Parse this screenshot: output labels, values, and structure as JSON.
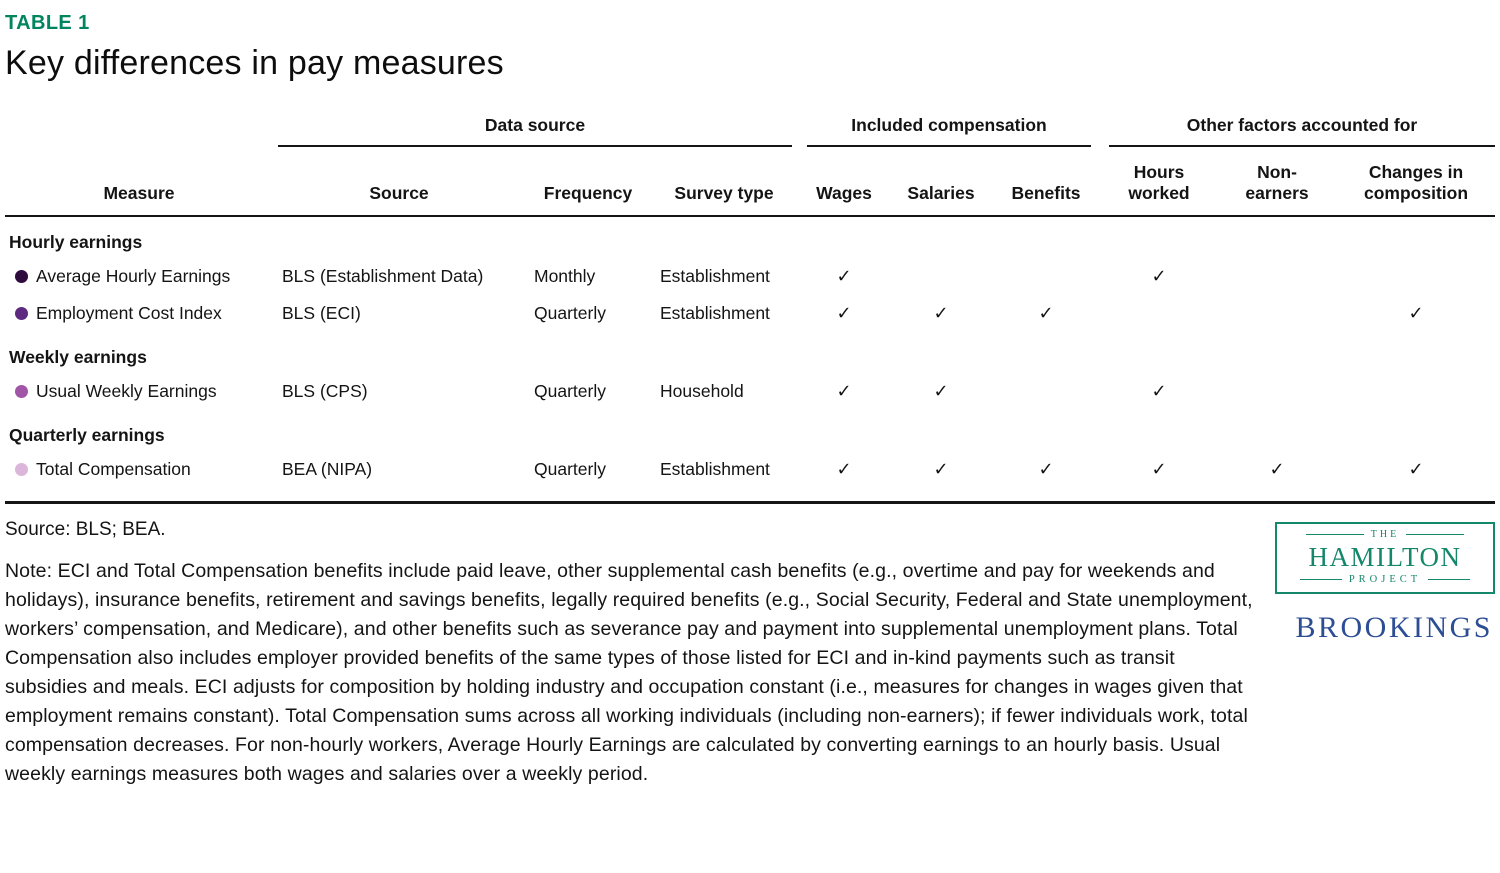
{
  "page": {
    "table_label": "TABLE 1",
    "title": "Key differences in pay measures"
  },
  "table": {
    "groups": {
      "data_source": "Data source",
      "included_compensation": "Included compensation",
      "other_factors": "Other factors accounted for"
    },
    "headers": {
      "measure": "Measure",
      "source": "Source",
      "frequency": "Frequency",
      "survey_type": "Survey type",
      "wages": "Wages",
      "salaries": "Salaries",
      "benefits": "Benefits",
      "hours_worked": "Hours\nworked",
      "non_earners": "Non-\nearners",
      "changes_in_composition": "Changes in\ncomposition"
    },
    "sections": [
      {
        "label": "Hourly earnings",
        "rows": [
          {
            "measure": "Average Hourly Earnings",
            "bullet_color": "#2d0b3d",
            "source": "BLS (Establishment Data)",
            "frequency": "Monthly",
            "survey_type": "Establishment",
            "checks": [
              "✓",
              "",
              "",
              "✓",
              "",
              ""
            ]
          },
          {
            "measure": "Employment Cost Index",
            "bullet_color": "#5e2a80",
            "source": "BLS (ECI)",
            "frequency": "Quarterly",
            "survey_type": "Establishment",
            "checks": [
              "✓",
              "✓",
              "✓",
              "",
              "",
              "✓"
            ]
          }
        ]
      },
      {
        "label": "Weekly earnings",
        "rows": [
          {
            "measure": "Usual Weekly Earnings",
            "bullet_color": "#a155a6",
            "source": "BLS (CPS)",
            "frequency": "Quarterly",
            "survey_type": "Household",
            "checks": [
              "✓",
              "✓",
              "",
              "✓",
              "",
              ""
            ]
          }
        ]
      },
      {
        "label": "Quarterly earnings",
        "rows": [
          {
            "measure": "Total Compensation",
            "bullet_color": "#dcb6da",
            "source": "BEA (NIPA)",
            "frequency": "Quarterly",
            "survey_type": "Establishment",
            "checks": [
              "✓",
              "✓",
              "✓",
              "✓",
              "✓",
              "✓"
            ]
          }
        ]
      }
    ]
  },
  "chart_data": {
    "type": "table",
    "title": "Key differences in pay measures",
    "column_groups": [
      "Data source",
      "Included compensation",
      "Other factors accounted for"
    ],
    "columns": [
      "Measure",
      "Source",
      "Frequency",
      "Survey type",
      "Wages",
      "Salaries",
      "Benefits",
      "Hours worked",
      "Non-earners",
      "Changes in composition"
    ],
    "rows": [
      {
        "section": "Hourly earnings",
        "measure": "Average Hourly Earnings",
        "source": "BLS (Establishment Data)",
        "frequency": "Monthly",
        "survey_type": "Establishment",
        "wages": true,
        "salaries": false,
        "benefits": false,
        "hours_worked": true,
        "non_earners": false,
        "changes_in_composition": false
      },
      {
        "section": "Hourly earnings",
        "measure": "Employment Cost Index",
        "source": "BLS (ECI)",
        "frequency": "Quarterly",
        "survey_type": "Establishment",
        "wages": true,
        "salaries": true,
        "benefits": true,
        "hours_worked": false,
        "non_earners": false,
        "changes_in_composition": true
      },
      {
        "section": "Weekly earnings",
        "measure": "Usual Weekly Earnings",
        "source": "BLS (CPS)",
        "frequency": "Quarterly",
        "survey_type": "Household",
        "wages": true,
        "salaries": true,
        "benefits": false,
        "hours_worked": true,
        "non_earners": false,
        "changes_in_composition": false
      },
      {
        "section": "Quarterly earnings",
        "measure": "Total Compensation",
        "source": "BEA (NIPA)",
        "frequency": "Quarterly",
        "survey_type": "Establishment",
        "wages": true,
        "salaries": true,
        "benefits": true,
        "hours_worked": true,
        "non_earners": true,
        "changes_in_composition": true
      }
    ]
  },
  "footer": {
    "source_line": "Source: BLS; BEA.",
    "note": "Note: ECI and Total Compensation benefits include paid leave, other supplemental cash benefits (e.g., overtime and pay for weekends and holidays), insurance benefits, retirement and savings benefits, legally required benefits (e.g., Social Security, Federal and State unemployment, workers’ compensation, and Medicare), and other benefits such as severance pay and payment into supplemental unemployment plans. Total Compensation also includes employer provided benefits of the same types of those listed for ECI and in-kind payments such as transit subsidies and meals. ECI adjusts for composition by holding industry and occupation constant (i.e., measures for changes in wages given that employment remains constant). Total Compensation sums across all working individuals (including non-earners); if fewer individuals work, total compensation decreases. For non-hourly workers, Average Hourly Earnings are calculated by converting earnings to an hourly basis. Usual weekly earnings measures both wages and salaries over a weekly period."
  },
  "branding": {
    "hamilton": {
      "the": "THE",
      "name": "HAMILTON",
      "project": "PROJECT"
    },
    "brookings": "BROOKINGS"
  },
  "colors": {
    "accent_green": "#00855f",
    "hamilton_green": "#15876b",
    "brookings_blue": "#2d4d94",
    "rule_black": "#151515"
  }
}
